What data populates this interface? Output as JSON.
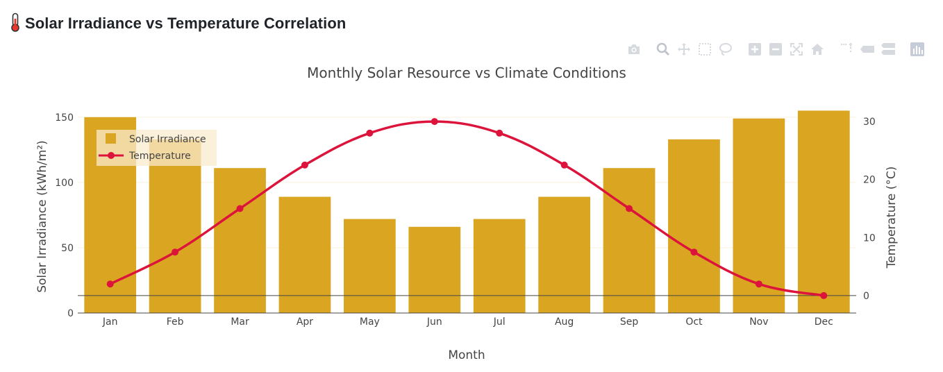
{
  "header": {
    "icon": "thermometer-icon",
    "title": "Solar Irradiance vs Temperature Correlation"
  },
  "modebar": {
    "buttons": [
      {
        "name": "camera-icon"
      },
      {
        "name": "zoom-icon"
      },
      {
        "name": "pan-icon"
      },
      {
        "name": "box-select-icon"
      },
      {
        "name": "lasso-select-icon"
      },
      {
        "name": "zoom-in-icon"
      },
      {
        "name": "zoom-out-icon"
      },
      {
        "name": "autoscale-icon"
      },
      {
        "name": "reset-axes-icon"
      },
      {
        "name": "spike-lines-icon"
      },
      {
        "name": "hover-closest-icon"
      },
      {
        "name": "hover-compare-icon"
      },
      {
        "name": "plotly-logo-icon"
      }
    ]
  },
  "colors": {
    "bar": "#DAA520",
    "line": "#DC143C",
    "grid": "#f8f0dc",
    "axis_line": "#444444",
    "legend_bg": "rgba(250,235,205,0.75)"
  },
  "chart_data": {
    "type": "bar",
    "title": "Monthly Solar Resource vs Climate Conditions",
    "xlabel": "Month",
    "ylabel": "Solar Irradiance (kWh/m²)",
    "y2label": "Temperature (°C)",
    "categories": [
      "Jan",
      "Feb",
      "Mar",
      "Apr",
      "May",
      "Jun",
      "Jul",
      "Aug",
      "Sep",
      "Oct",
      "Nov",
      "Dec"
    ],
    "series": [
      {
        "name": "Solar Irradiance",
        "type": "bar",
        "axis": "y",
        "values": [
          150,
          133,
          111,
          89,
          72,
          66,
          72,
          89,
          111,
          133,
          149,
          155
        ]
      },
      {
        "name": "Temperature",
        "type": "line",
        "axis": "y2",
        "values": [
          2,
          7.5,
          15,
          22.5,
          28,
          30,
          28,
          22.5,
          15,
          7.5,
          2,
          0
        ]
      }
    ],
    "ylim": [
      0,
      160
    ],
    "yticks": [
      0,
      50,
      100,
      150
    ],
    "y2lim": [
      -3,
      33
    ],
    "y2ticks": [
      0,
      10,
      20,
      30
    ],
    "grid": true,
    "legend_position": "top-left"
  }
}
